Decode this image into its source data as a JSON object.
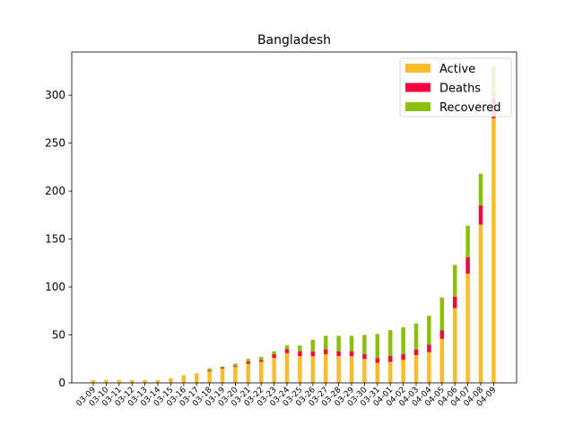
{
  "chart_data": {
    "type": "bar",
    "stacked": true,
    "title": "Bangladesh",
    "xlabel": "",
    "ylabel": "",
    "categories": [
      "03-09",
      "03-10",
      "03-11",
      "03-12",
      "03-13",
      "03-14",
      "03-15",
      "03-16",
      "03-17",
      "03-18",
      "03-19",
      "03-20",
      "03-21",
      "03-22",
      "03-23",
      "03-24",
      "03-25",
      "03-26",
      "03-27",
      "03-28",
      "03-29",
      "03-30",
      "03-31",
      "04-01",
      "04-02",
      "04-03",
      "04-04",
      "04-05",
      "04-06",
      "04-07",
      "04-08",
      "04-09"
    ],
    "ylim": [
      0,
      345
    ],
    "yticks": [
      0,
      50,
      100,
      150,
      200,
      250,
      300
    ],
    "legend_position": "top-right",
    "grid": false,
    "series": [
      {
        "name": "Active",
        "color": "#f9bc2c",
        "values": [
          3,
          3,
          3,
          3,
          3,
          3,
          5,
          8,
          10,
          12,
          15,
          17,
          20,
          22,
          26,
          31,
          28,
          28,
          30,
          28,
          28,
          25,
          21,
          22,
          24,
          29,
          32,
          46,
          78,
          114,
          165,
          276
        ]
      },
      {
        "name": "Deaths",
        "color": "#f2053d",
        "values": [
          0,
          0,
          0,
          0,
          0,
          0,
          0,
          0,
          0,
          1,
          1,
          1,
          2,
          2,
          4,
          4,
          5,
          5,
          5,
          5,
          5,
          5,
          5,
          6,
          6,
          6,
          8,
          9,
          12,
          17,
          20,
          21
        ]
      },
      {
        "name": "Recovered",
        "color": "#8abf0a",
        "values": [
          0,
          0,
          0,
          0,
          0,
          0,
          0,
          0,
          0,
          2,
          1,
          2,
          3,
          3,
          3,
          4,
          6,
          12,
          14,
          16,
          16,
          20,
          25,
          27,
          28,
          27,
          30,
          34,
          33,
          33,
          33,
          33
        ]
      }
    ]
  }
}
